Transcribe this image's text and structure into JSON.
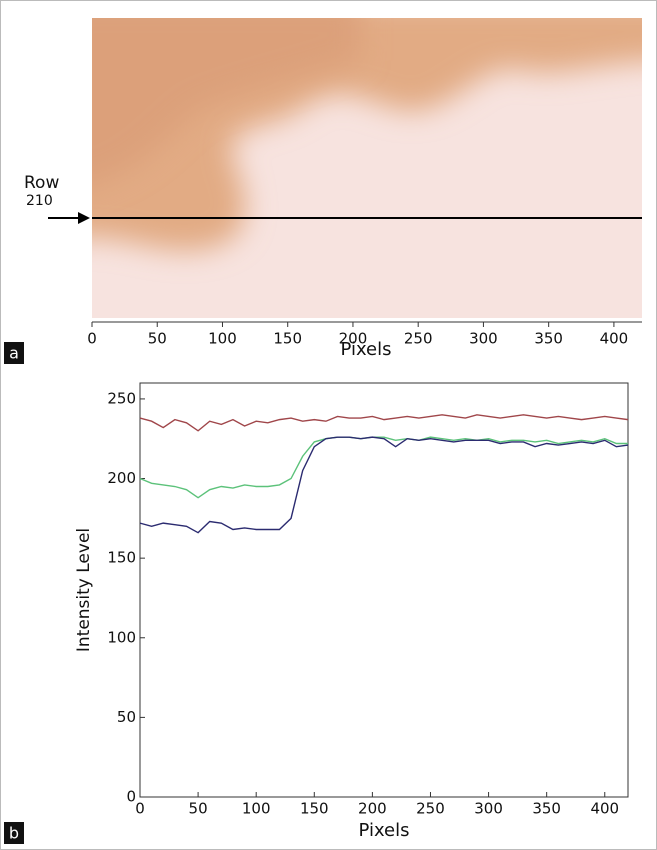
{
  "chart_data": [
    {
      "type": "image",
      "panel_label": "a",
      "xlabel": "Pixels",
      "xlim": [
        0,
        420
      ],
      "xticks": [
        0,
        50,
        100,
        150,
        200,
        250,
        300,
        350,
        400
      ],
      "annotation": {
        "label": "Row",
        "row": 210
      }
    },
    {
      "type": "line",
      "panel_label": "b",
      "xlabel": "Pixels",
      "ylabel": "Intensity Level",
      "xlim": [
        0,
        420
      ],
      "ylim": [
        0,
        260
      ],
      "xticks": [
        0,
        50,
        100,
        150,
        200,
        250,
        300,
        350,
        400
      ],
      "yticks": [
        0,
        50,
        100,
        150,
        200,
        250
      ],
      "x": [
        0,
        10,
        20,
        30,
        40,
        50,
        60,
        70,
        80,
        90,
        100,
        110,
        120,
        130,
        140,
        150,
        160,
        170,
        180,
        190,
        200,
        210,
        220,
        230,
        240,
        250,
        260,
        270,
        280,
        290,
        300,
        310,
        320,
        330,
        340,
        350,
        360,
        370,
        380,
        390,
        400,
        410,
        420
      ],
      "series": [
        {
          "color": "#a0464a",
          "values": [
            238,
            236,
            232,
            237,
            235,
            230,
            236,
            234,
            237,
            233,
            236,
            235,
            237,
            238,
            236,
            237,
            236,
            239,
            238,
            238,
            239,
            237,
            238,
            239,
            238,
            239,
            240,
            239,
            238,
            240,
            239,
            238,
            239,
            240,
            239,
            238,
            239,
            238,
            237,
            238,
            239,
            238,
            237
          ]
        },
        {
          "color": "#5cc27a",
          "values": [
            200,
            197,
            196,
            195,
            193,
            188,
            193,
            195,
            194,
            196,
            195,
            195,
            196,
            200,
            214,
            223,
            225,
            226,
            226,
            225,
            226,
            226,
            224,
            225,
            224,
            226,
            225,
            224,
            225,
            224,
            225,
            223,
            224,
            224,
            223,
            224,
            222,
            223,
            224,
            223,
            225,
            222,
            222
          ]
        },
        {
          "color": "#2b2b70",
          "values": [
            172,
            170,
            172,
            171,
            170,
            166,
            173,
            172,
            168,
            169,
            168,
            168,
            168,
            175,
            205,
            220,
            225,
            226,
            226,
            225,
            226,
            225,
            220,
            225,
            224,
            225,
            224,
            223,
            224,
            224,
            224,
            222,
            223,
            223,
            220,
            222,
            221,
            222,
            223,
            222,
            224,
            220,
            221
          ]
        }
      ]
    }
  ]
}
